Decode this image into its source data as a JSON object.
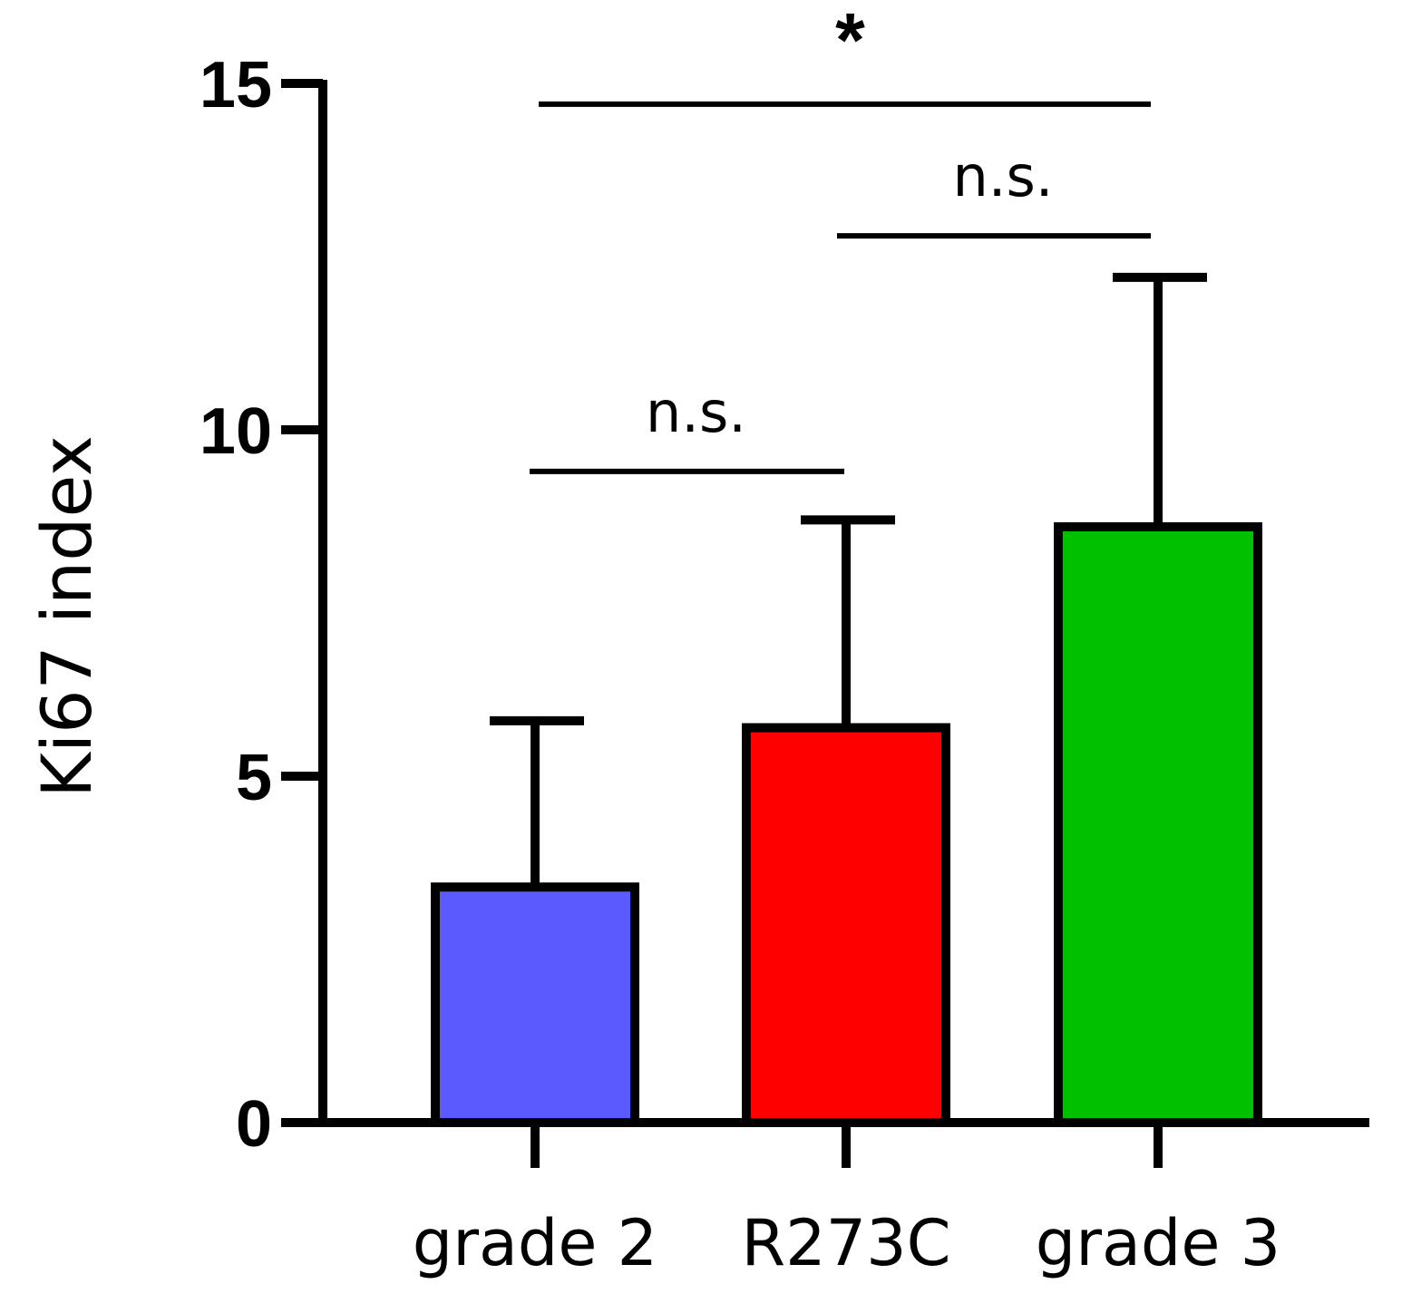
{
  "chart_data": {
    "type": "bar",
    "title": "",
    "xlabel": "",
    "ylabel": "Ki67 index",
    "ylim": [
      0,
      15
    ],
    "yticks": [
      "0",
      "5",
      "10",
      "15"
    ],
    "categories": [
      "grade 2",
      "R273C",
      "grade 3"
    ],
    "values": [
      3.4,
      5.7,
      8.6
    ],
    "error_upper": [
      5.8,
      8.7,
      12.2
    ],
    "colors": [
      "#5a5aff",
      "#ff0000",
      "#00c000"
    ],
    "comparisons": [
      {
        "from": 0,
        "to": 1,
        "level": 9.4,
        "label": "n.s."
      },
      {
        "from": 1,
        "to": 2,
        "level": 12.8,
        "label": "n.s."
      },
      {
        "from": 0,
        "to": 2,
        "level": 14.7,
        "label": "*"
      }
    ]
  }
}
